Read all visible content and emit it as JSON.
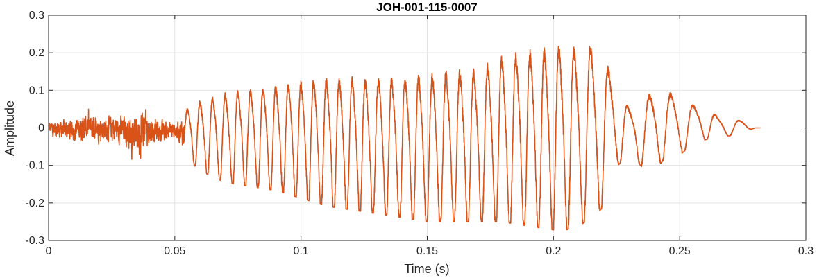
{
  "chart_data": {
    "type": "line",
    "title": "JOH-001-115-0007",
    "xlabel": "Time (s)",
    "ylabel": "Amplitude",
    "xlim": [
      0,
      0.3
    ],
    "ylim": [
      -0.3,
      0.3
    ],
    "xticks": [
      0,
      0.05,
      0.1,
      0.15,
      0.2,
      0.25,
      0.3
    ],
    "xtick_labels": [
      "0",
      "0.05",
      "0.1",
      "0.15",
      "0.2",
      "0.25",
      "0.3"
    ],
    "yticks": [
      -0.3,
      -0.2,
      -0.1,
      0,
      0.1,
      0.2,
      0.3
    ],
    "ytick_labels": [
      "-0.3",
      "-0.2",
      "-0.1",
      "0",
      "0.1",
      "0.2",
      "0.3"
    ],
    "grid": true,
    "line_color": "#D95319",
    "x_start": 0,
    "x_end": 0.282,
    "series": [
      {
        "envelope": {
          "x": [
            0,
            0.005,
            0.01,
            0.015,
            0.02,
            0.025,
            0.03,
            0.035,
            0.036,
            0.038,
            0.04,
            0.045,
            0.05,
            0.055,
            0.06,
            0.07,
            0.08,
            0.09,
            0.1,
            0.11,
            0.12,
            0.13,
            0.14,
            0.15,
            0.16,
            0.17,
            0.18,
            0.19,
            0.2,
            0.205,
            0.21,
            0.215,
            0.22,
            0.225,
            0.23,
            0.235,
            0.24,
            0.245,
            0.25,
            0.255,
            0.26,
            0.265,
            0.27,
            0.275,
            0.28,
            0.282
          ],
          "upper": [
            0.03,
            0.03,
            0.04,
            0.05,
            0.05,
            0.05,
            0.05,
            0.07,
            0.1,
            0.08,
            0.05,
            0.03,
            0.03,
            0.05,
            0.07,
            0.09,
            0.1,
            0.11,
            0.12,
            0.13,
            0.13,
            0.13,
            0.13,
            0.14,
            0.15,
            0.15,
            0.19,
            0.2,
            0.21,
            0.22,
            0.2,
            0.22,
            0.18,
            0.12,
            0.05,
            0.07,
            0.1,
            0.1,
            0.07,
            0.06,
            0.06,
            0.03,
            0.02,
            0.02,
            0.0,
            0.0
          ],
          "lower": [
            -0.03,
            -0.04,
            -0.05,
            -0.05,
            -0.05,
            -0.05,
            -0.06,
            -0.1,
            -0.12,
            -0.08,
            -0.06,
            -0.05,
            -0.04,
            -0.08,
            -0.11,
            -0.14,
            -0.15,
            -0.16,
            -0.18,
            -0.2,
            -0.21,
            -0.22,
            -0.23,
            -0.24,
            -0.24,
            -0.24,
            -0.24,
            -0.25,
            -0.26,
            -0.26,
            -0.25,
            -0.23,
            -0.2,
            -0.1,
            -0.06,
            -0.1,
            -0.11,
            -0.07,
            -0.07,
            -0.04,
            -0.03,
            -0.02,
            -0.02,
            -0.01,
            0.0,
            0.0
          ]
        },
        "dominant_frequency_hz": {
          "x": [
            0.055,
            0.1,
            0.15,
            0.2,
            0.23,
            0.282
          ],
          "f": [
            200,
            200,
            185,
            175,
            120,
            105
          ]
        }
      }
    ]
  }
}
